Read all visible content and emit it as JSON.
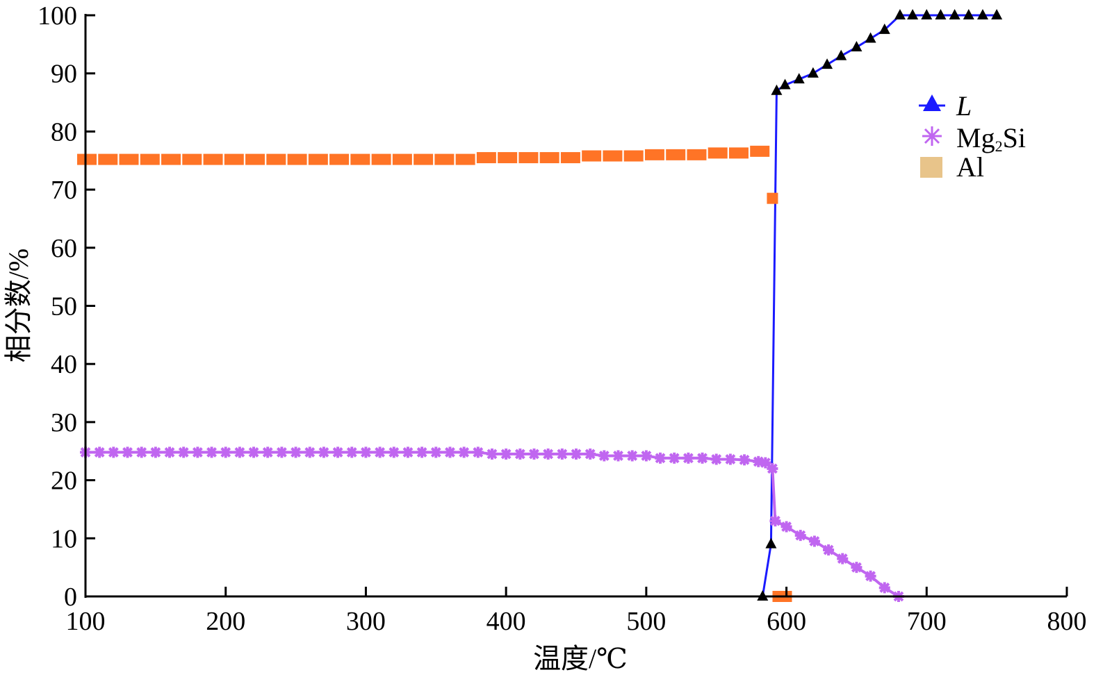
{
  "chart_data": {
    "type": "line",
    "title": "",
    "xlabel": "温度/℃",
    "ylabel": "相分数/%",
    "xlim": [
      100,
      800
    ],
    "ylim": [
      0,
      100
    ],
    "xticks": [
      "100",
      "200",
      "300",
      "400",
      "500",
      "600",
      "700",
      "800"
    ],
    "yticks": [
      "0",
      "10",
      "20",
      "30",
      "40",
      "50",
      "60",
      "70",
      "80",
      "90",
      "100"
    ],
    "legend_position": "right",
    "grid": false,
    "series": [
      {
        "name": "L",
        "color": "#1a1aff",
        "marker": "triangle",
        "x": [
          583,
          589,
          593,
          599,
          609,
          619,
          629,
          639,
          650,
          660,
          670,
          681,
          690,
          700,
          710,
          720,
          730,
          740,
          750
        ],
        "y": [
          0,
          9,
          87,
          88,
          89,
          90,
          91.5,
          93,
          94.5,
          96,
          97.5,
          100,
          100,
          100,
          100,
          100,
          100,
          100,
          100
        ]
      },
      {
        "name": "Mg2Si",
        "color": "#c066f0",
        "marker": "asterisk",
        "x": [
          100,
          110,
          120,
          130,
          140,
          150,
          160,
          170,
          180,
          190,
          200,
          210,
          220,
          230,
          240,
          250,
          260,
          270,
          280,
          290,
          300,
          310,
          320,
          330,
          340,
          350,
          360,
          370,
          380,
          390,
          400,
          410,
          420,
          430,
          440,
          450,
          460,
          470,
          480,
          490,
          500,
          510,
          520,
          530,
          540,
          550,
          560,
          570,
          580,
          585,
          590,
          592,
          600,
          610,
          620,
          630,
          640,
          650,
          660,
          670,
          680
        ],
        "y": [
          24.8,
          24.8,
          24.8,
          24.8,
          24.8,
          24.8,
          24.8,
          24.8,
          24.8,
          24.8,
          24.8,
          24.8,
          24.8,
          24.8,
          24.8,
          24.8,
          24.8,
          24.8,
          24.8,
          24.8,
          24.8,
          24.8,
          24.8,
          24.8,
          24.8,
          24.8,
          24.8,
          24.8,
          24.8,
          24.5,
          24.5,
          24.5,
          24.5,
          24.5,
          24.5,
          24.5,
          24.5,
          24.2,
          24.2,
          24.2,
          24.2,
          23.8,
          23.8,
          23.8,
          23.8,
          23.6,
          23.6,
          23.5,
          23.2,
          23,
          22,
          13,
          12,
          10.5,
          9.5,
          8,
          6.5,
          5,
          3.5,
          1.5,
          0
        ]
      },
      {
        "name": "Al",
        "color": "#ff7426",
        "legend_color": "#e8c48a",
        "marker": "square",
        "x": [
          100,
          115,
          130,
          145,
          160,
          175,
          190,
          205,
          220,
          235,
          250,
          265,
          280,
          295,
          310,
          325,
          340,
          355,
          370,
          385,
          400,
          415,
          430,
          445,
          460,
          475,
          490,
          505,
          520,
          535,
          550,
          565,
          580,
          592,
          596
        ],
        "y": [
          75.2,
          75.2,
          75.2,
          75.2,
          75.2,
          75.2,
          75.2,
          75.2,
          75.2,
          75.2,
          75.2,
          75.2,
          75.2,
          75.2,
          75.2,
          75.2,
          75.2,
          75.2,
          75.2,
          75.5,
          75.5,
          75.5,
          75.5,
          75.5,
          75.8,
          75.8,
          75.8,
          76,
          76,
          76,
          76.3,
          76.3,
          76.6,
          68.5,
          0
        ]
      }
    ],
    "legend_labels": {
      "L": "L",
      "Mg": "Mg",
      "sub": "2",
      "Si": "Si",
      "Al": "Al"
    }
  }
}
